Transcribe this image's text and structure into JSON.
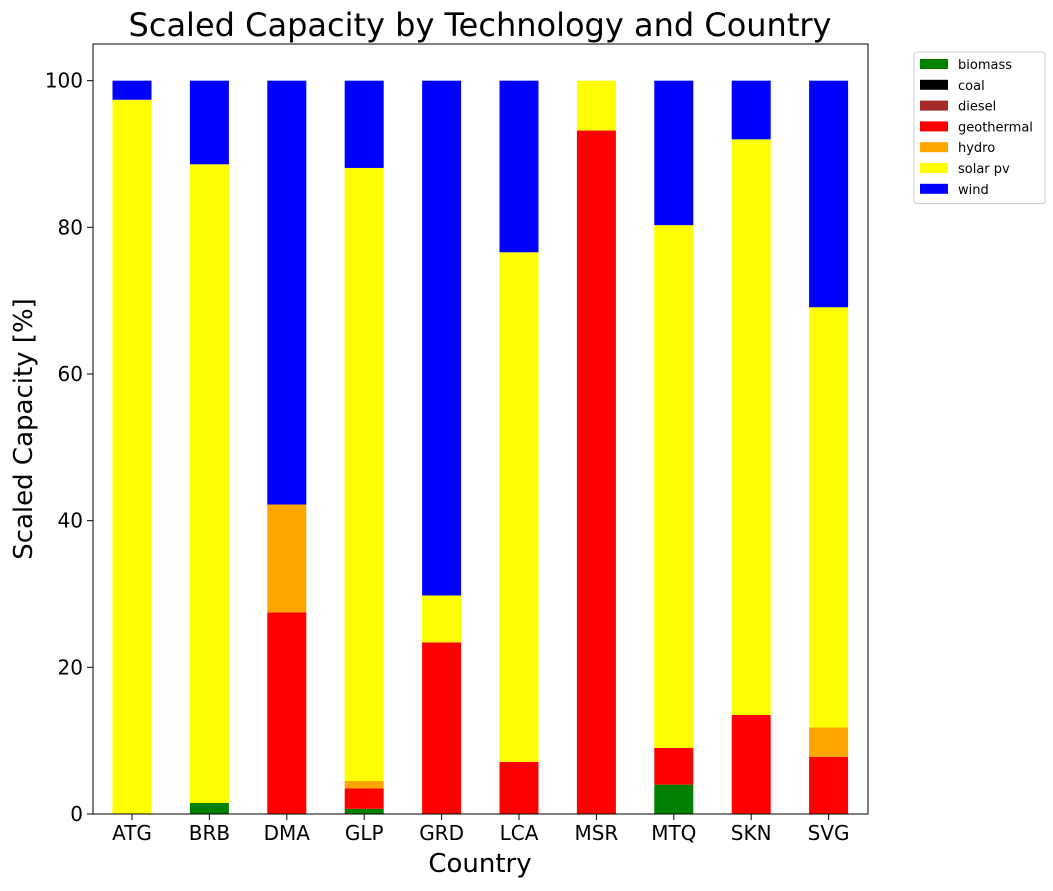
{
  "chart_data": {
    "type": "bar",
    "stacked": true,
    "title": "Scaled Capacity by Technology and Country",
    "xlabel": "Country",
    "ylabel": "Scaled Capacity [%]",
    "ylim": [
      0,
      105
    ],
    "yticks": [
      0,
      20,
      40,
      60,
      80,
      100
    ],
    "grid": false,
    "legend_position": "outside top-right",
    "categories": [
      "ATG",
      "BRB",
      "DMA",
      "GLP",
      "GRD",
      "LCA",
      "MSR",
      "MTQ",
      "SKN",
      "SVG"
    ],
    "series": [
      {
        "name": "biomass",
        "color": "#008000",
        "values": [
          0,
          1.5,
          0,
          0.7,
          0,
          0,
          0,
          4.0,
          0,
          0
        ]
      },
      {
        "name": "coal",
        "color": "#000000",
        "values": [
          0,
          0,
          0,
          0,
          0,
          0,
          0,
          0,
          0,
          0
        ]
      },
      {
        "name": "diesel",
        "color": "#a52a2a",
        "values": [
          0,
          0,
          0,
          0,
          0,
          0,
          0,
          0,
          0,
          0
        ]
      },
      {
        "name": "geothermal",
        "color": "#ff0000",
        "values": [
          0,
          0,
          27.5,
          2.8,
          23.4,
          7.1,
          93.2,
          5.0,
          13.5,
          7.8
        ]
      },
      {
        "name": "hydro",
        "color": "#ffa500",
        "values": [
          0,
          0,
          14.7,
          1.0,
          0,
          0,
          0,
          0,
          0,
          4.0
        ]
      },
      {
        "name": "solar pv",
        "color": "#ffff00",
        "values": [
          97.4,
          87.1,
          0,
          83.6,
          6.4,
          69.5,
          6.8,
          71.3,
          78.5,
          57.3
        ]
      },
      {
        "name": "wind",
        "color": "#0000ff",
        "values": [
          2.6,
          11.4,
          57.8,
          11.9,
          70.2,
          23.4,
          0,
          19.7,
          8.0,
          30.9
        ]
      }
    ]
  }
}
